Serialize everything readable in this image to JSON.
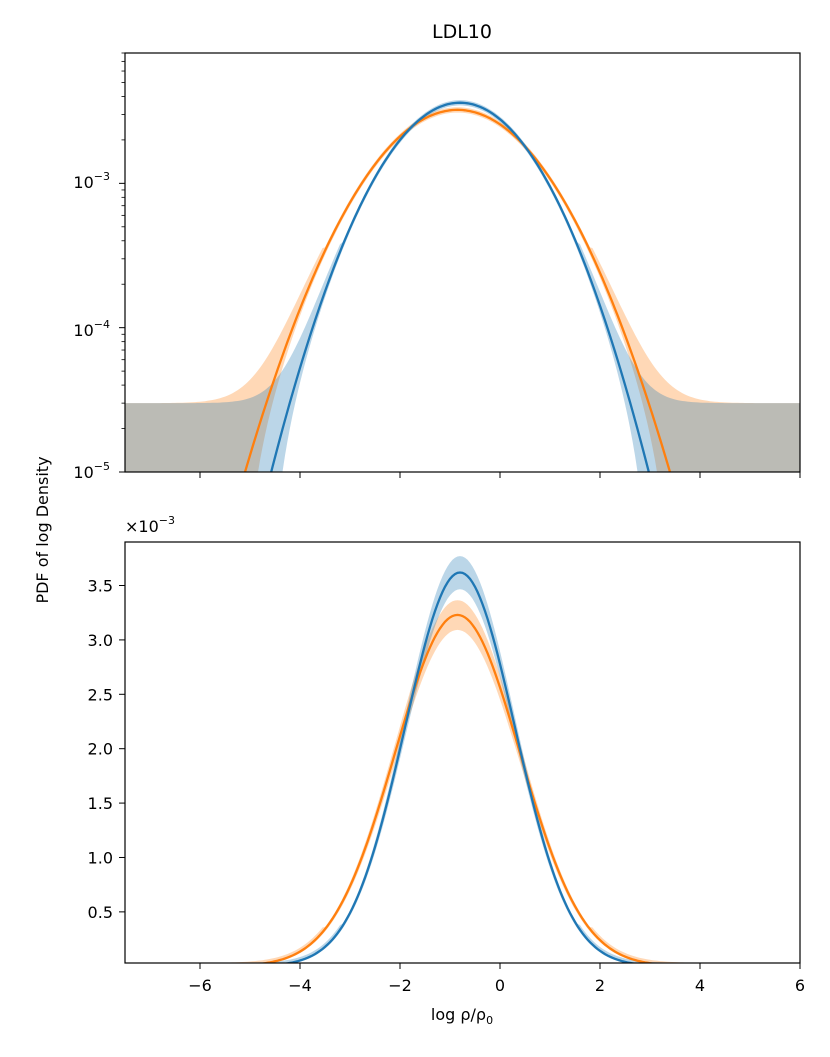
{
  "chart_data": {
    "type": "line",
    "title": "LDL10",
    "ylabel": "PDF of log Density",
    "xlabel": "log ρ/ρ",
    "xlabel_subscript": "0",
    "xlim": [
      -7.5,
      6
    ],
    "x_ticks": [
      -6,
      -4,
      -2,
      0,
      2,
      4,
      6
    ],
    "x_tick_labels": [
      "−6",
      "−4",
      "−2",
      "0",
      "2",
      "4",
      "6"
    ],
    "colors": {
      "blue": "#1f77b4",
      "orange": "#ff7f0e"
    },
    "series": [
      {
        "name": "blue",
        "color": "#1f77b4",
        "mean": -0.8,
        "sigma": 1.1,
        "peak": 0.00362,
        "band_frac": 0.04,
        "band_tail_abs": 3e-05
      },
      {
        "name": "orange",
        "color": "#ff7f0e",
        "mean": -0.85,
        "sigma": 1.25,
        "peak": 0.00323,
        "band_frac": 0.04,
        "band_tail_abs": 3e-05
      }
    ],
    "panels": [
      {
        "id": "top",
        "scale": "log",
        "ylim": [
          1e-05,
          0.008
        ],
        "y_ticks": [
          0.001,
          0.0001,
          1e-05
        ],
        "y_tick_bases": [
          "10",
          "10",
          "10"
        ],
        "y_tick_exponents": [
          "−3",
          "−4",
          "−5"
        ]
      },
      {
        "id": "bottom",
        "scale": "linear",
        "ylim": [
          3e-05,
          0.0039
        ],
        "y_ticks": [
          0.0005,
          0.001,
          0.0015,
          0.002,
          0.0025,
          0.003,
          0.0035
        ],
        "y_tick_labels": [
          "0.5",
          "1.0",
          "1.5",
          "2.0",
          "2.5",
          "3.0",
          "3.5"
        ],
        "offset_label": "×10",
        "offset_exponent": "−3"
      }
    ]
  }
}
